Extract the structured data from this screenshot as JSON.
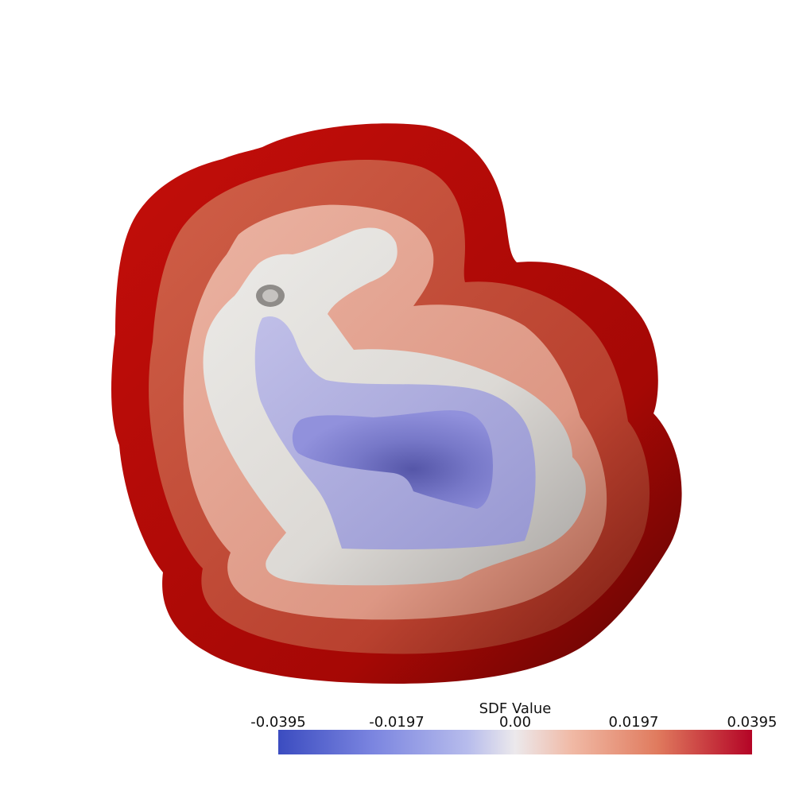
{
  "scene": {
    "object": "bunny",
    "layer_colors": {
      "outer": "#b40b09",
      "fourth": "#c34a36",
      "third": "#e3a492",
      "surface": "#e5e2df",
      "inner1": "#aaa9db",
      "inner2": "#7e7fd0"
    }
  },
  "scalar_bar": {
    "title": "SDF Value",
    "ticks": [
      "-0.0395",
      "-0.0197",
      "0.00",
      "0.0197",
      "0.0395"
    ],
    "min": -0.0395,
    "max": 0.0395
  }
}
